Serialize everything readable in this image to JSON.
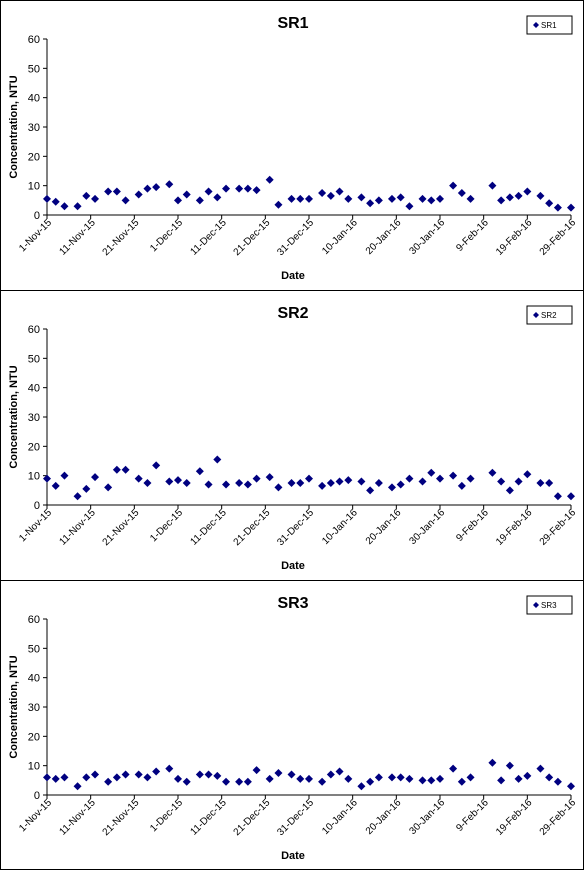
{
  "chart_data": [
    {
      "type": "scatter",
      "title": "SR1",
      "xlabel": "Date",
      "ylabel": "Concentration, NTU",
      "ylim": [
        0,
        60
      ],
      "yticks": [
        0,
        10,
        20,
        30,
        40,
        50,
        60
      ],
      "xlim": [
        "2015-11-01",
        "2016-02-29"
      ],
      "xticks": [
        "1-Nov-15",
        "11-Nov-15",
        "21-Nov-15",
        "1-Dec-15",
        "11-Dec-15",
        "21-Dec-15",
        "31-Dec-15",
        "10-Jan-16",
        "20-Jan-16",
        "30-Jan-16",
        "9-Feb-16",
        "19-Feb-16",
        "29-Feb-16"
      ],
      "grid": false,
      "legend": "top-right",
      "marker_color": "#000080",
      "series": [
        {
          "name": "SR1",
          "x": [
            "2015-11-01",
            "2015-11-03",
            "2015-11-05",
            "2015-11-08",
            "2015-11-10",
            "2015-11-12",
            "2015-11-15",
            "2015-11-17",
            "2015-11-19",
            "2015-11-22",
            "2015-11-24",
            "2015-11-26",
            "2015-11-29",
            "2015-12-01",
            "2015-12-03",
            "2015-12-06",
            "2015-12-08",
            "2015-12-10",
            "2015-12-12",
            "2015-12-15",
            "2015-12-17",
            "2015-12-19",
            "2015-12-22",
            "2015-12-24",
            "2015-12-27",
            "2015-12-29",
            "2015-12-31",
            "2016-01-03",
            "2016-01-05",
            "2016-01-07",
            "2016-01-09",
            "2016-01-12",
            "2016-01-14",
            "2016-01-16",
            "2016-01-19",
            "2016-01-21",
            "2016-01-23",
            "2016-01-26",
            "2016-01-28",
            "2016-01-30",
            "2016-02-02",
            "2016-02-04",
            "2016-02-06",
            "2016-02-11",
            "2016-02-13",
            "2016-02-15",
            "2016-02-17",
            "2016-02-19",
            "2016-02-22",
            "2016-02-24",
            "2016-02-26",
            "2016-02-29"
          ],
          "y": [
            5.5,
            4.5,
            3,
            3,
            6.5,
            5.5,
            8,
            8,
            5,
            7,
            9,
            9.5,
            10.5,
            5,
            7,
            5,
            8,
            6,
            9,
            9,
            9,
            8.5,
            12,
            3.5,
            5.5,
            5.5,
            5.5,
            7.5,
            6.5,
            8,
            5.5,
            6,
            4,
            5,
            5.5,
            6,
            3,
            5.5,
            5,
            5.5,
            10,
            7.5,
            5.5,
            10,
            5,
            6,
            6.5,
            8,
            6.5,
            4,
            2.5,
            2.5
          ]
        }
      ]
    },
    {
      "type": "scatter",
      "title": "SR2",
      "xlabel": "Date",
      "ylabel": "Concentration, NTU",
      "ylim": [
        0,
        60
      ],
      "yticks": [
        0,
        10,
        20,
        30,
        40,
        50,
        60
      ],
      "xlim": [
        "2015-11-01",
        "2016-02-29"
      ],
      "xticks": [
        "1-Nov-15",
        "11-Nov-15",
        "21-Nov-15",
        "1-Dec-15",
        "11-Dec-15",
        "21-Dec-15",
        "31-Dec-15",
        "10-Jan-16",
        "20-Jan-16",
        "30-Jan-16",
        "9-Feb-16",
        "19-Feb-16",
        "29-Feb-16"
      ],
      "grid": false,
      "legend": "top-right",
      "marker_color": "#000080",
      "series": [
        {
          "name": "SR2",
          "x": [
            "2015-11-01",
            "2015-11-03",
            "2015-11-05",
            "2015-11-08",
            "2015-11-10",
            "2015-11-12",
            "2015-11-15",
            "2015-11-17",
            "2015-11-19",
            "2015-11-22",
            "2015-11-24",
            "2015-11-26",
            "2015-11-29",
            "2015-12-01",
            "2015-12-03",
            "2015-12-06",
            "2015-12-08",
            "2015-12-10",
            "2015-12-12",
            "2015-12-15",
            "2015-12-17",
            "2015-12-19",
            "2015-12-22",
            "2015-12-24",
            "2015-12-27",
            "2015-12-29",
            "2015-12-31",
            "2016-01-03",
            "2016-01-05",
            "2016-01-07",
            "2016-01-09",
            "2016-01-12",
            "2016-01-14",
            "2016-01-16",
            "2016-01-19",
            "2016-01-21",
            "2016-01-23",
            "2016-01-26",
            "2016-01-28",
            "2016-01-30",
            "2016-02-02",
            "2016-02-04",
            "2016-02-06",
            "2016-02-11",
            "2016-02-13",
            "2016-02-15",
            "2016-02-17",
            "2016-02-19",
            "2016-02-22",
            "2016-02-24",
            "2016-02-26",
            "2016-02-29"
          ],
          "y": [
            9,
            6.5,
            10,
            3,
            5.5,
            9.5,
            6,
            12,
            12,
            9,
            7.5,
            13.5,
            8,
            8.5,
            7.5,
            11.5,
            7,
            15.5,
            7,
            7.5,
            7,
            9,
            9.5,
            6,
            7.5,
            7.5,
            9,
            6.5,
            7.5,
            8,
            8.5,
            8,
            5,
            7.5,
            6,
            7,
            9,
            8,
            11,
            9,
            10,
            6.5,
            9,
            11,
            8,
            5,
            8,
            10.5,
            7.5,
            7.5,
            3,
            3
          ]
        }
      ]
    },
    {
      "type": "scatter",
      "title": "SR3",
      "xlabel": "Date",
      "ylabel": "Concentration, NTU",
      "ylim": [
        0,
        60
      ],
      "yticks": [
        0,
        10,
        20,
        30,
        40,
        50,
        60
      ],
      "xlim": [
        "2015-11-01",
        "2016-02-29"
      ],
      "xticks": [
        "1-Nov-15",
        "11-Nov-15",
        "21-Nov-15",
        "1-Dec-15",
        "11-Dec-15",
        "21-Dec-15",
        "31-Dec-15",
        "10-Jan-16",
        "20-Jan-16",
        "30-Jan-16",
        "9-Feb-16",
        "19-Feb-16",
        "29-Feb-16"
      ],
      "grid": false,
      "legend": "top-right",
      "marker_color": "#000080",
      "series": [
        {
          "name": "SR3",
          "x": [
            "2015-11-01",
            "2015-11-03",
            "2015-11-05",
            "2015-11-08",
            "2015-11-10",
            "2015-11-12",
            "2015-11-15",
            "2015-11-17",
            "2015-11-19",
            "2015-11-22",
            "2015-11-24",
            "2015-11-26",
            "2015-11-29",
            "2015-12-01",
            "2015-12-03",
            "2015-12-06",
            "2015-12-08",
            "2015-12-10",
            "2015-12-12",
            "2015-12-15",
            "2015-12-17",
            "2015-12-19",
            "2015-12-22",
            "2015-12-24",
            "2015-12-27",
            "2015-12-29",
            "2015-12-31",
            "2016-01-03",
            "2016-01-05",
            "2016-01-07",
            "2016-01-09",
            "2016-01-12",
            "2016-01-14",
            "2016-01-16",
            "2016-01-19",
            "2016-01-21",
            "2016-01-23",
            "2016-01-26",
            "2016-01-28",
            "2016-01-30",
            "2016-02-02",
            "2016-02-04",
            "2016-02-06",
            "2016-02-11",
            "2016-02-13",
            "2016-02-15",
            "2016-02-17",
            "2016-02-19",
            "2016-02-22",
            "2016-02-24",
            "2016-02-26",
            "2016-02-29"
          ],
          "y": [
            6,
            5.5,
            6,
            3,
            6,
            7,
            4.5,
            6,
            7,
            7,
            6,
            8,
            9,
            5.5,
            4.5,
            7,
            7,
            6.5,
            4.5,
            4.5,
            4.5,
            8.5,
            5.5,
            7.5,
            7,
            5.5,
            5.5,
            4.5,
            7,
            8,
            5.5,
            3,
            4.5,
            6,
            6,
            6,
            5.5,
            5,
            5,
            5.5,
            9,
            4.5,
            6,
            11,
            5,
            10,
            5.5,
            6.5,
            9,
            6,
            4.5,
            3
          ]
        }
      ]
    }
  ]
}
